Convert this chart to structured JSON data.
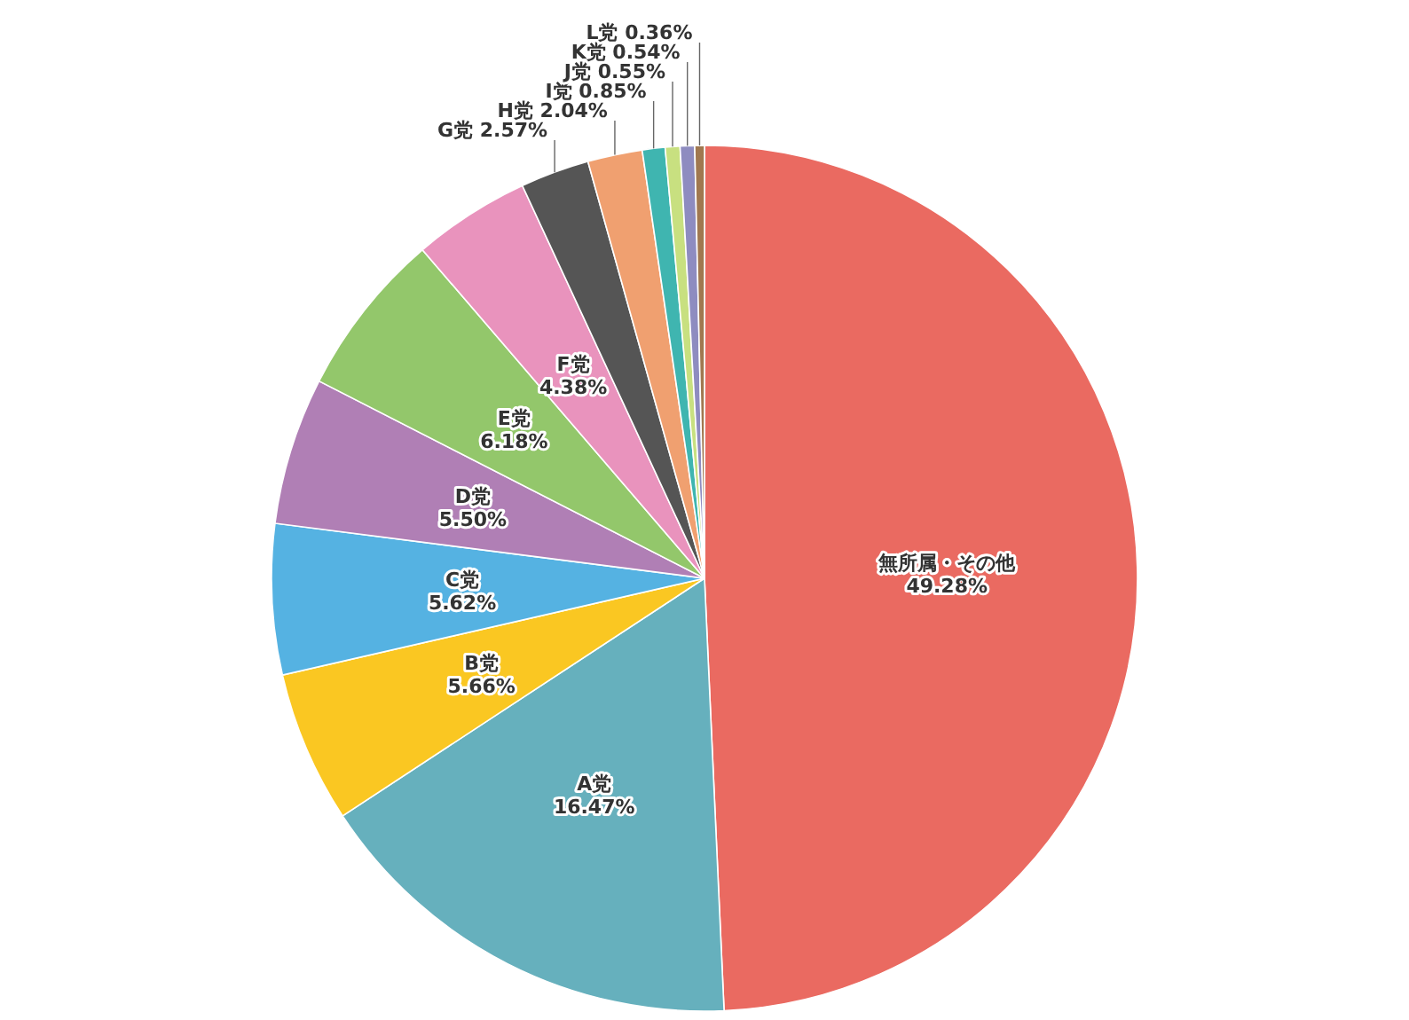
{
  "chart_data": {
    "type": "pie",
    "categories": [
      "無所属・その他",
      "A党",
      "B党",
      "C党",
      "D党",
      "E党",
      "F党",
      "G党",
      "H党",
      "I党",
      "J党",
      "K党",
      "L党"
    ],
    "values": [
      49.28,
      16.47,
      5.66,
      5.62,
      5.5,
      6.18,
      4.38,
      2.57,
      2.04,
      0.85,
      0.55,
      0.54,
      0.36
    ],
    "value_labels": [
      "49.28%",
      "16.47%",
      "5.66%",
      "5.62%",
      "5.50%",
      "6.18%",
      "4.38%",
      "2.57%",
      "2.04%",
      "0.85%",
      "0.55%",
      "0.54%",
      "0.36%"
    ],
    "colors": [
      "#ea6a61",
      "#66b0bd",
      "#fac722",
      "#55b2e2",
      "#b07fb5",
      "#93c76b",
      "#e993bd",
      "#555555",
      "#f0a070",
      "#3fb5b0",
      "#c8e080",
      "#8e8cc0",
      "#a07850"
    ]
  }
}
